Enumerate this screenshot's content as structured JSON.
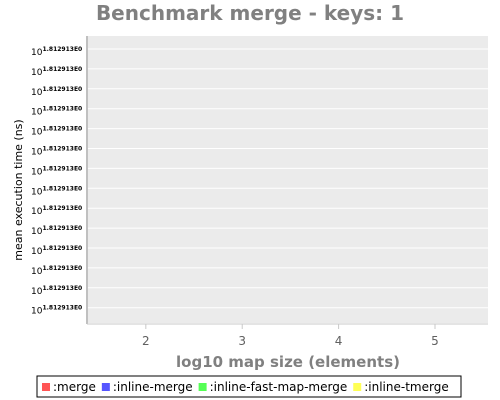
{
  "chart_data": {
    "type": "line",
    "title": "Benchmark merge - keys: 1",
    "xlabel": "log10 map size (elements)",
    "ylabel": "mean execution time (ns)",
    "x_ticks": [
      "2",
      "3",
      "4",
      "5"
    ],
    "xlim": [
      1.4,
      5.55
    ],
    "y_tick_base": "10",
    "y_tick_exponent": "1.812913E0",
    "y_tick_count": 14,
    "grid": true,
    "legend_position": "bottom",
    "series": [
      {
        "name": ":merge",
        "color": "#ff5555",
        "values": []
      },
      {
        "name": ":inline-merge",
        "color": "#5555ff",
        "values": []
      },
      {
        "name": ":inline-fast-map-merge",
        "color": "#55ff55",
        "values": []
      },
      {
        "name": ":inline-tmerge",
        "color": "#ffff55",
        "values": []
      }
    ],
    "colors": {
      "plot_background": "#ebebeb",
      "gridline": "#ffffff",
      "axis_text": "#808080"
    }
  }
}
